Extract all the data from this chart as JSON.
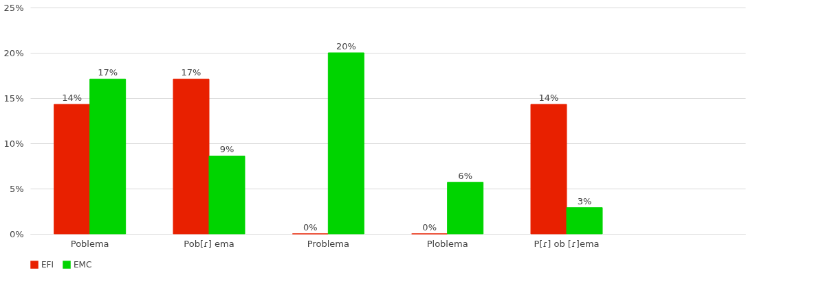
{
  "chart_data": {
    "type": "bar",
    "categories": [
      "Poblema",
      "Pob[ɾ] ema",
      "Problema",
      "Ploblema",
      "P[ɾ] ob [ɾ]ema",
      null
    ],
    "series": [
      {
        "name": "EFI",
        "color": "#e82000",
        "values": [
          14.3,
          17.1,
          0,
          0,
          14.3,
          null
        ],
        "value_labels": [
          "14%",
          "17%",
          "0%",
          "0%",
          "14%",
          null
        ]
      },
      {
        "name": "EMC",
        "color": "#00d400",
        "values": [
          17.1,
          8.6,
          20,
          5.7,
          2.9,
          null
        ],
        "value_labels": [
          "17%",
          "9%",
          "20%",
          "6%",
          "3%",
          null
        ]
      }
    ],
    "ylim": [
      0,
      25
    ],
    "yticks": [
      {
        "value": 0,
        "label": "0%"
      },
      {
        "value": 5,
        "label": "5%"
      },
      {
        "value": 10,
        "label": "10%"
      },
      {
        "value": 15,
        "label": "15%"
      },
      {
        "value": 20,
        "label": "20%"
      },
      {
        "value": 25,
        "label": "25%"
      }
    ],
    "grid": "y",
    "legend": "bottom"
  }
}
